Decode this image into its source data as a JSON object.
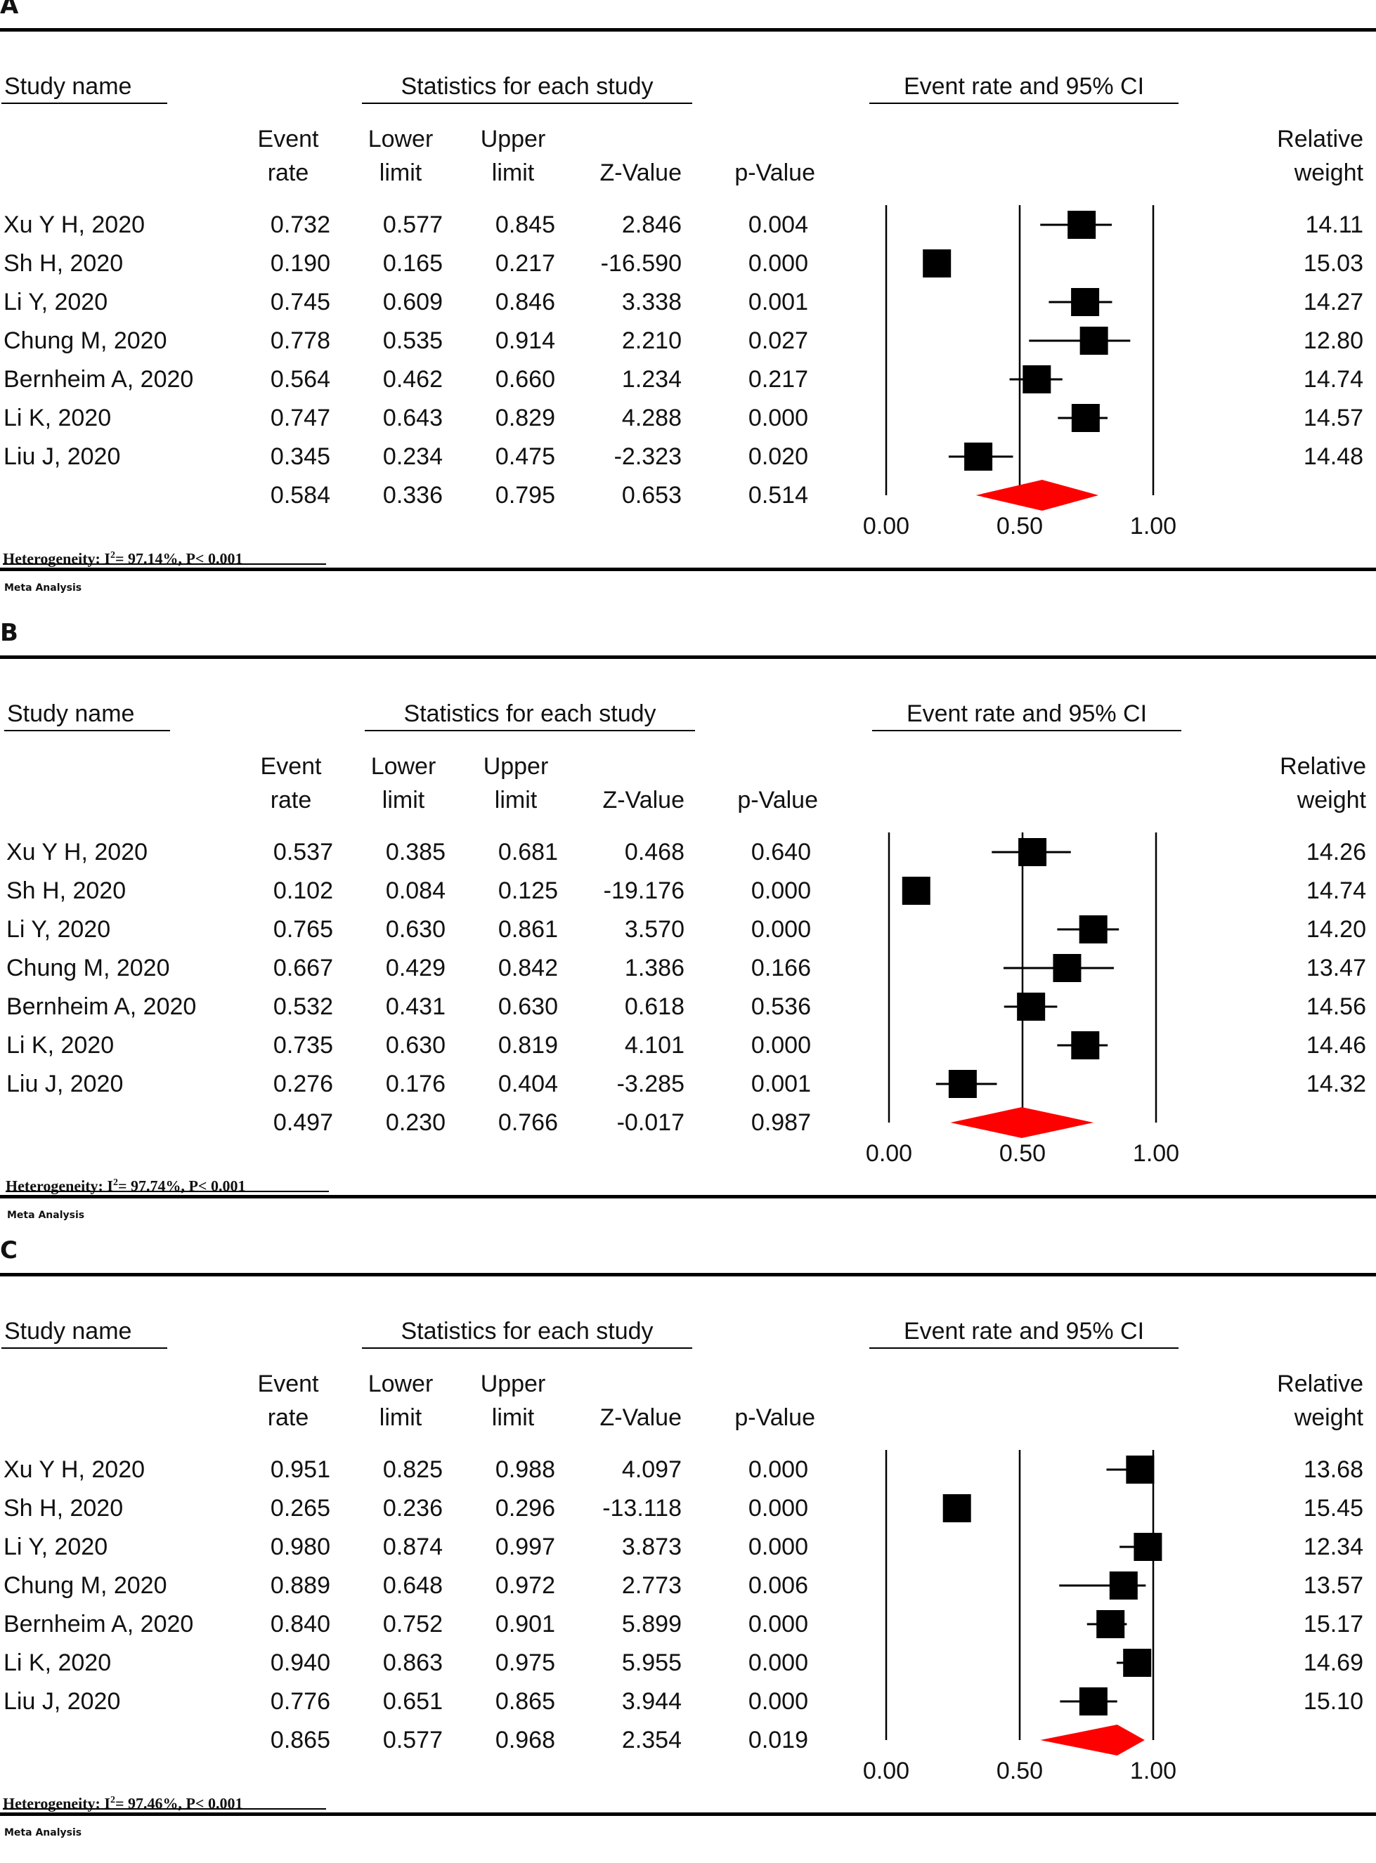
{
  "columns": {
    "study": "Study name",
    "stats_header": "Statistics for each study",
    "plot_header": "Event rate and 95% CI",
    "event": [
      "Event",
      "rate"
    ],
    "lower": [
      "Lower",
      "limit"
    ],
    "upper": [
      "Upper",
      "limit"
    ],
    "z": "Z-Value",
    "p": "p-Value",
    "weight": [
      "Relative",
      "weight"
    ]
  },
  "footer_label": "Meta Analysis",
  "colors": {
    "marker": "#000000",
    "diamond": "#ff0000",
    "axis": "#000000"
  },
  "chart_data": [
    {
      "panel": "A",
      "type": "forest",
      "xlim": [
        0,
        1
      ],
      "xticks": [
        "0.00",
        "0.50",
        "1.00"
      ],
      "heterogeneity": {
        "I2": "97.14%",
        "P": "P< 0.001"
      },
      "studies": [
        {
          "name": "Xu Y H, 2020",
          "event_rate": "0.732",
          "lower": "0.577",
          "upper": "0.845",
          "z": "2.846",
          "p": "0.004",
          "weight": "14.11"
        },
        {
          "name": "Sh H, 2020",
          "event_rate": "0.190",
          "lower": "0.165",
          "upper": "0.217",
          "z": "-16.590",
          "p": "0.000",
          "weight": "15.03"
        },
        {
          "name": "Li Y, 2020",
          "event_rate": "0.745",
          "lower": "0.609",
          "upper": "0.846",
          "z": "3.338",
          "p": "0.001",
          "weight": "14.27"
        },
        {
          "name": "Chung M, 2020",
          "event_rate": "0.778",
          "lower": "0.535",
          "upper": "0.914",
          "z": "2.210",
          "p": "0.027",
          "weight": "12.80"
        },
        {
          "name": "Bernheim A, 2020",
          "event_rate": "0.564",
          "lower": "0.462",
          "upper": "0.660",
          "z": "1.234",
          "p": "0.217",
          "weight": "14.74"
        },
        {
          "name": "Li K, 2020",
          "event_rate": "0.747",
          "lower": "0.643",
          "upper": "0.829",
          "z": "4.288",
          "p": "0.000",
          "weight": "14.57"
        },
        {
          "name": "Liu J, 2020",
          "event_rate": "0.345",
          "lower": "0.234",
          "upper": "0.475",
          "z": "-2.323",
          "p": "0.020",
          "weight": "14.48"
        }
      ],
      "pooled": {
        "event_rate": "0.584",
        "lower": "0.336",
        "upper": "0.795",
        "z": "0.653",
        "p": "0.514"
      }
    },
    {
      "panel": "B",
      "type": "forest",
      "xlim": [
        0,
        1
      ],
      "xticks": [
        "0.00",
        "0.50",
        "1.00"
      ],
      "heterogeneity": {
        "I2": "97.74%",
        "P": "P< 0.001"
      },
      "studies": [
        {
          "name": "Xu Y H, 2020",
          "event_rate": "0.537",
          "lower": "0.385",
          "upper": "0.681",
          "z": "0.468",
          "p": "0.640",
          "weight": "14.26"
        },
        {
          "name": "Sh H, 2020",
          "event_rate": "0.102",
          "lower": "0.084",
          "upper": "0.125",
          "z": "-19.176",
          "p": "0.000",
          "weight": "14.74"
        },
        {
          "name": "Li Y, 2020",
          "event_rate": "0.765",
          "lower": "0.630",
          "upper": "0.861",
          "z": "3.570",
          "p": "0.000",
          "weight": "14.20"
        },
        {
          "name": "Chung M, 2020",
          "event_rate": "0.667",
          "lower": "0.429",
          "upper": "0.842",
          "z": "1.386",
          "p": "0.166",
          "weight": "13.47"
        },
        {
          "name": "Bernheim A, 2020",
          "event_rate": "0.532",
          "lower": "0.431",
          "upper": "0.630",
          "z": "0.618",
          "p": "0.536",
          "weight": "14.56"
        },
        {
          "name": "Li K, 2020",
          "event_rate": "0.735",
          "lower": "0.630",
          "upper": "0.819",
          "z": "4.101",
          "p": "0.000",
          "weight": "14.46"
        },
        {
          "name": "Liu J, 2020",
          "event_rate": "0.276",
          "lower": "0.176",
          "upper": "0.404",
          "z": "-3.285",
          "p": "0.001",
          "weight": "14.32"
        }
      ],
      "pooled": {
        "event_rate": "0.497",
        "lower": "0.230",
        "upper": "0.766",
        "z": "-0.017",
        "p": "0.987"
      }
    },
    {
      "panel": "C",
      "type": "forest",
      "xlim": [
        0,
        1
      ],
      "xticks": [
        "0.00",
        "0.50",
        "1.00"
      ],
      "heterogeneity": {
        "I2": "97.46%",
        "P": "P< 0.001"
      },
      "studies": [
        {
          "name": "Xu Y H, 2020",
          "event_rate": "0.951",
          "lower": "0.825",
          "upper": "0.988",
          "z": "4.097",
          "p": "0.000",
          "weight": "13.68"
        },
        {
          "name": "Sh H, 2020",
          "event_rate": "0.265",
          "lower": "0.236",
          "upper": "0.296",
          "z": "-13.118",
          "p": "0.000",
          "weight": "15.45"
        },
        {
          "name": "Li Y, 2020",
          "event_rate": "0.980",
          "lower": "0.874",
          "upper": "0.997",
          "z": "3.873",
          "p": "0.000",
          "weight": "12.34"
        },
        {
          "name": "Chung M, 2020",
          "event_rate": "0.889",
          "lower": "0.648",
          "upper": "0.972",
          "z": "2.773",
          "p": "0.006",
          "weight": "13.57"
        },
        {
          "name": "Bernheim A, 2020",
          "event_rate": "0.840",
          "lower": "0.752",
          "upper": "0.901",
          "z": "5.899",
          "p": "0.000",
          "weight": "15.17"
        },
        {
          "name": "Li K, 2020",
          "event_rate": "0.940",
          "lower": "0.863",
          "upper": "0.975",
          "z": "5.955",
          "p": "0.000",
          "weight": "14.69"
        },
        {
          "name": "Liu J, 2020",
          "event_rate": "0.776",
          "lower": "0.651",
          "upper": "0.865",
          "z": "3.944",
          "p": "0.000",
          "weight": "15.10"
        }
      ],
      "pooled": {
        "event_rate": "0.865",
        "lower": "0.577",
        "upper": "0.968",
        "z": "2.354",
        "p": "0.019"
      }
    }
  ]
}
